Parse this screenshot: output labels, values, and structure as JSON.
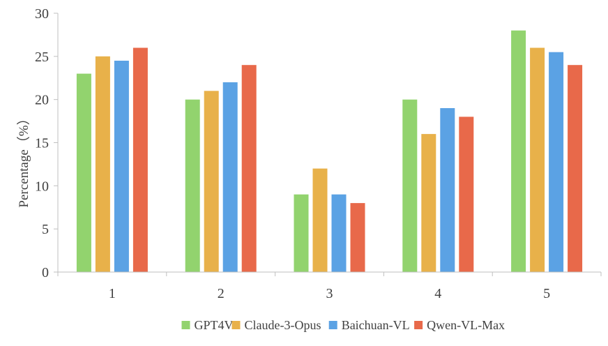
{
  "chart_data": {
    "type": "bar",
    "title": "",
    "xlabel": "",
    "ylabel": "Percentage（%）",
    "categories": [
      "1",
      "2",
      "3",
      "4",
      "5"
    ],
    "ylim": [
      0,
      30
    ],
    "yticks": [
      "0",
      "5",
      "10",
      "15",
      "20",
      "25",
      "30"
    ],
    "grid": false,
    "legend": "bottom",
    "series": [
      {
        "name": "GPT4V",
        "color": "#92d36e",
        "values": [
          23,
          20,
          9,
          20,
          28
        ]
      },
      {
        "name": "Claude-3-Opus",
        "color": "#e8b14a",
        "values": [
          25,
          21,
          12,
          16,
          26
        ]
      },
      {
        "name": "Baichuan-VL",
        "color": "#5ba2e4",
        "values": [
          24.5,
          22,
          9,
          19,
          25.5
        ]
      },
      {
        "name": "Qwen-VL-Max",
        "color": "#e8694a",
        "values": [
          26,
          24,
          8,
          18,
          24
        ]
      }
    ]
  }
}
